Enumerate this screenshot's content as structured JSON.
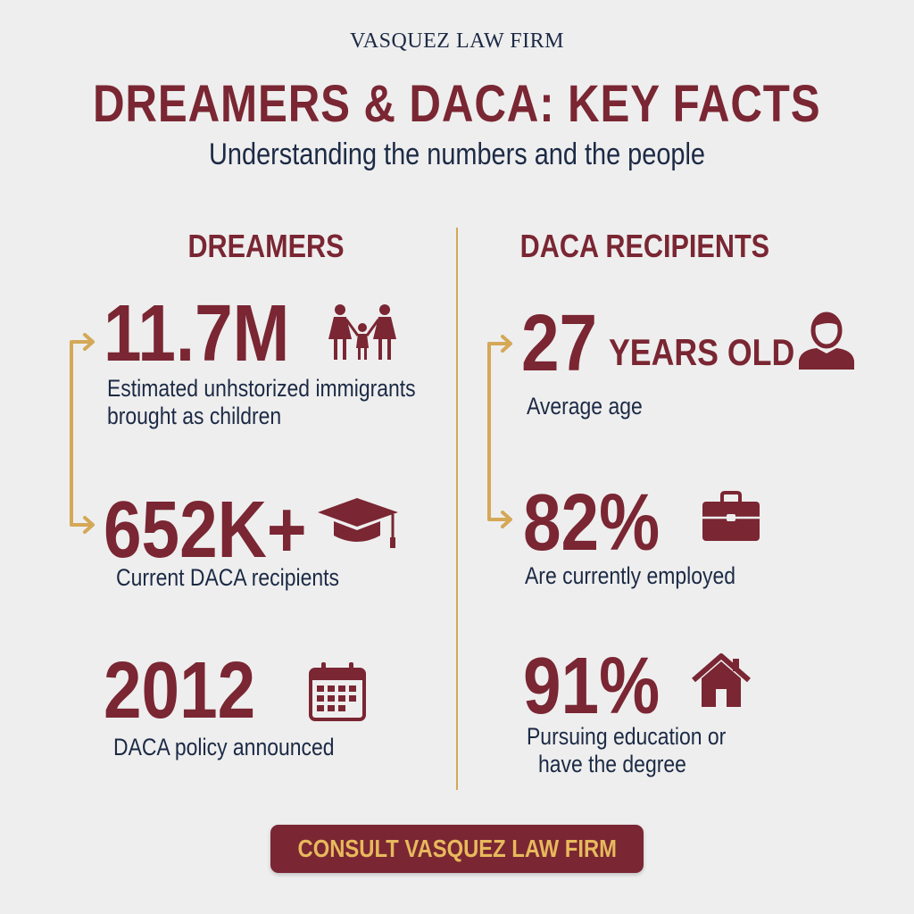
{
  "header": {
    "firm_name": "VASQUEZ LAW FIRM",
    "title": "DREAMERS & DACA: KEY FACTS",
    "subtitle": "Understanding the numbers and the people"
  },
  "colors": {
    "accent": "#7a2633",
    "text": "#1c2a45",
    "gold": "#d4a857",
    "background": "#eeeeee"
  },
  "left": {
    "heading": "DREAMERS",
    "stats": [
      {
        "value": "11.7M",
        "desc1": "Estimated unhstorized immigrants",
        "desc2": "brought as children",
        "icon": "family-icon"
      },
      {
        "value": "652K+",
        "desc1": "Current DACA recipients",
        "icon": "graduation-cap-icon"
      },
      {
        "value": "2012",
        "desc1": "DACA policy announced",
        "icon": "calendar-icon"
      }
    ]
  },
  "right": {
    "heading": "DACA RECIPIENTS",
    "stats": [
      {
        "value": "27",
        "unit": "YEARS OLD",
        "desc1": "Average age",
        "icon": "person-icon"
      },
      {
        "value": "82%",
        "desc1": "Are currently employed",
        "icon": "briefcase-icon"
      },
      {
        "value": "91%",
        "desc1": "Pursuing education or",
        "desc2": "have the degree",
        "icon": "house-icon"
      }
    ]
  },
  "cta": {
    "label": "CONSULT VASQUEZ LAW FIRM"
  }
}
